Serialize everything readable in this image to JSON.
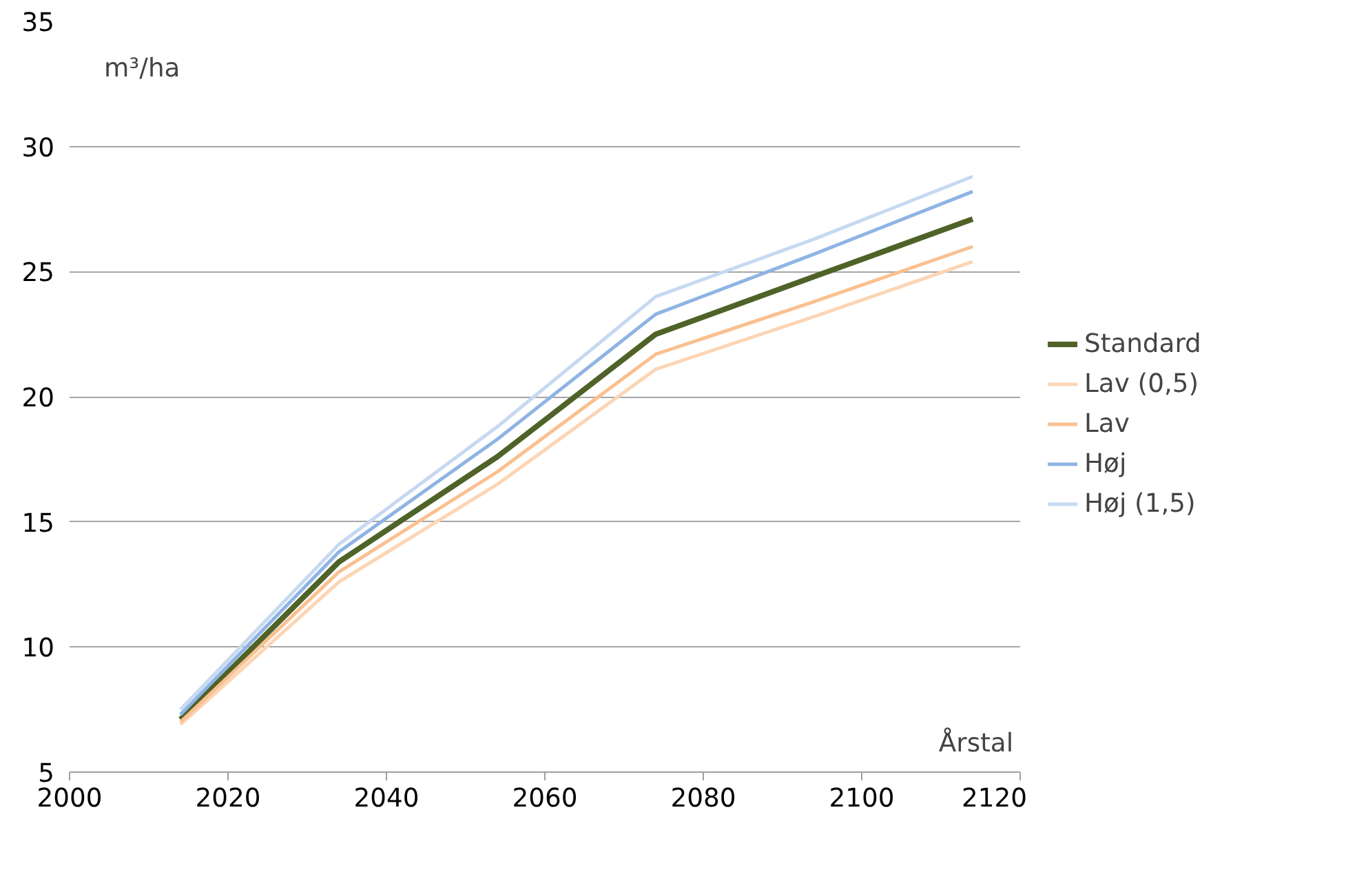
{
  "chart_data": {
    "type": "line",
    "xlabel": "Årstal",
    "ylabel": "m³/ha",
    "x": [
      2014,
      2034,
      2054,
      2074,
      2094,
      2114
    ],
    "xlim": [
      2000,
      2120
    ],
    "xticks": [
      2000,
      2020,
      2040,
      2060,
      2080,
      2100,
      2120
    ],
    "ylim": [
      5,
      35
    ],
    "yticks": [
      5,
      10,
      15,
      20,
      25,
      30,
      35
    ],
    "grid": "y",
    "legend": "right",
    "marker": "none",
    "line_style": "solid",
    "series": [
      {
        "name": "Standard",
        "color": "#4f6228",
        "values": [
          7.1,
          13.4,
          17.6,
          22.5,
          24.8,
          27.1
        ]
      },
      {
        "name": "Lav (0,5)",
        "color": "#fcd5b5",
        "values": [
          6.9,
          12.6,
          16.5,
          21.1,
          23.2,
          25.4
        ]
      },
      {
        "name": "Lav",
        "color": "#fac090",
        "values": [
          7.0,
          13.0,
          17.0,
          21.7,
          23.8,
          26.0
        ]
      },
      {
        "name": "Høj",
        "color": "#8eb4e3",
        "values": [
          7.3,
          13.8,
          18.3,
          23.3,
          25.7,
          28.2
        ]
      },
      {
        "name": "Høj (1,5)",
        "color": "#c6d9f1",
        "values": [
          7.5,
          14.1,
          18.8,
          24.0,
          26.3,
          28.8
        ]
      }
    ]
  }
}
